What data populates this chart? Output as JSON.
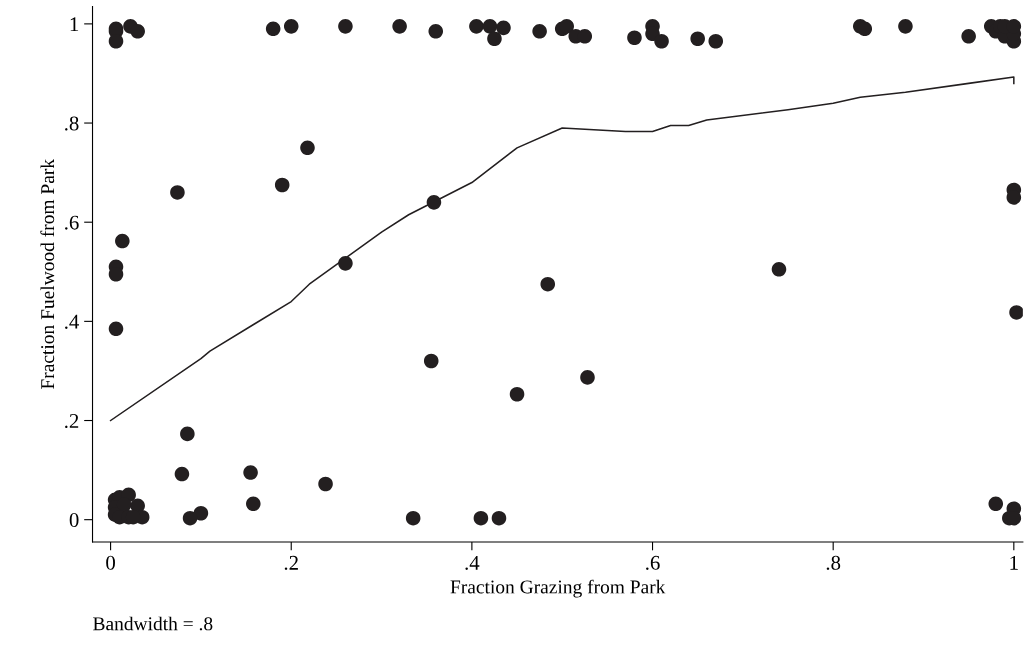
{
  "chart_data": {
    "type": "scatter",
    "xlabel": "Fraction Grazing from Park",
    "ylabel": "Fraction Fuelwood from Park",
    "annotations": [
      "Bandwidth = .8"
    ],
    "xlim": [
      -0.02,
      1.01
    ],
    "ylim": [
      -0.045,
      1.035
    ],
    "xticks": [
      0,
      {
        "value": 0.2,
        "label": ".2"
      },
      {
        "value": 0.4,
        "label": ".4"
      },
      {
        "value": 0.6,
        "label": ".6"
      },
      {
        "value": 0.8,
        "label": ".8"
      },
      1
    ],
    "yticks": [
      0,
      {
        "value": 0.2,
        "label": ".2"
      },
      {
        "value": 0.4,
        "label": ".4"
      },
      {
        "value": 0.6,
        "label": ".6"
      },
      {
        "value": 0.8,
        "label": ".8"
      },
      1
    ],
    "grid": false,
    "legend": false,
    "series": [
      {
        "color": "#231f20",
        "marker": "circle",
        "x": [
          0.006,
          0.006,
          0.006,
          0.022,
          0.03,
          0.18,
          0.2,
          0.26,
          0.32,
          0.36,
          0.405,
          0.42,
          0.425,
          0.435,
          0.475,
          0.5,
          0.505,
          0.515,
          0.525,
          0.58,
          0.6,
          0.6,
          0.61,
          0.65,
          0.67,
          0.83,
          0.835,
          0.88,
          0.95,
          0.975,
          0.98,
          0.985,
          0.99,
          1.0,
          1.0,
          0.99,
          1.0,
          0.074,
          0.19,
          0.218,
          0.358,
          0.26,
          0.013,
          0.006,
          0.006,
          0.006,
          0.484,
          0.355,
          0.45,
          0.528,
          0.74,
          1.0,
          1.0,
          1.003,
          0.085,
          0.079,
          0.155,
          0.238,
          0.158,
          0.1,
          0.088,
          0.335,
          0.41,
          0.43,
          0.98,
          0.995,
          1.0,
          1.0,
          0.005,
          0.01,
          0.02,
          0.005,
          0.015,
          0.03,
          0.005,
          0.01,
          0.02,
          0.035,
          0.025
        ],
        "values": [
          0.99,
          0.985,
          0.965,
          0.995,
          0.985,
          0.99,
          0.995,
          0.995,
          0.995,
          0.985,
          0.995,
          0.995,
          0.97,
          0.992,
          0.985,
          0.99,
          0.995,
          0.975,
          0.975,
          0.972,
          0.995,
          0.98,
          0.965,
          0.97,
          0.965,
          0.995,
          0.99,
          0.995,
          0.975,
          0.995,
          0.985,
          0.995,
          0.975,
          0.965,
          0.98,
          0.995,
          0.995,
          0.66,
          0.675,
          0.75,
          0.64,
          0.517,
          0.562,
          0.51,
          0.495,
          0.385,
          0.475,
          0.32,
          0.253,
          0.287,
          0.505,
          0.665,
          0.65,
          0.418,
          0.173,
          0.092,
          0.095,
          0.072,
          0.032,
          0.013,
          0.003,
          0.003,
          0.003,
          0.003,
          0.032,
          0.003,
          0.022,
          0.003,
          0.04,
          0.045,
          0.05,
          0.025,
          0.03,
          0.028,
          0.01,
          0.005,
          0.005,
          0.005,
          0.005
        ]
      },
      {
        "type": "line",
        "color": "#231f20",
        "marker": "none",
        "line_style": "solid",
        "x": [
          0,
          0.1,
          0.11,
          0.2,
          0.22,
          0.3,
          0.33,
          0.4,
          0.45,
          0.5,
          0.57,
          0.6,
          0.62,
          0.64,
          0.66,
          0.75,
          0.8,
          0.83,
          0.88,
          0.95,
          1.0,
          1.0
        ],
        "values": [
          0.2,
          0.325,
          0.34,
          0.44,
          0.475,
          0.58,
          0.615,
          0.68,
          0.75,
          0.79,
          0.783,
          0.783,
          0.795,
          0.795,
          0.806,
          0.827,
          0.84,
          0.852,
          0.862,
          0.88,
          0.893,
          0.88
        ]
      }
    ]
  }
}
